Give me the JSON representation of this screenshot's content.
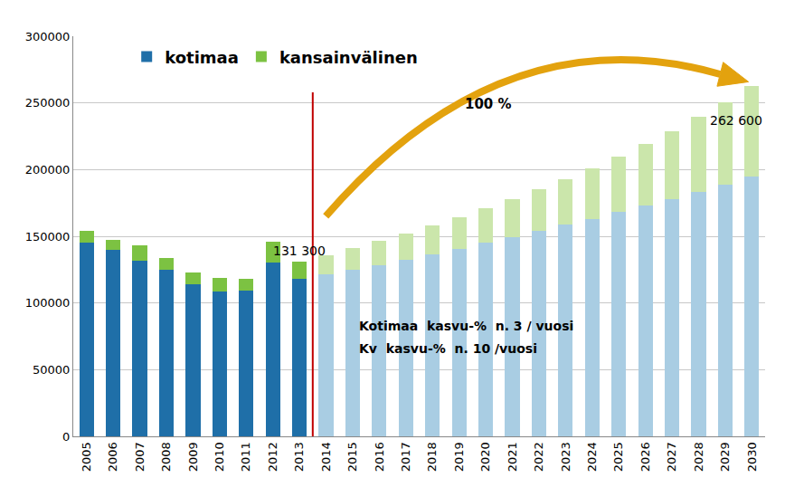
{
  "chart_data": {
    "type": "bar",
    "stacked": true,
    "grid": true,
    "legend": "upper left",
    "categories": [
      "2005",
      "2006",
      "2007",
      "2008",
      "2009",
      "2010",
      "2011",
      "2012",
      "2013",
      "2014",
      "2015",
      "2016",
      "2017",
      "2018",
      "2019",
      "2020",
      "2021",
      "2022",
      "2023",
      "2024",
      "2025",
      "2026",
      "2027",
      "2028",
      "2029",
      "2030"
    ],
    "series": [
      {
        "name": "kotimaa",
        "color": "#1f6fa8",
        "colors": [
          "#1f6fa8",
          "#1f6fa8",
          "#1f6fa8",
          "#1f6fa8",
          "#1f6fa8",
          "#1f6fa8",
          "#1f6fa8",
          "#1f6fa8",
          "#1f6fa8",
          "#a9cde3",
          "#a9cde3",
          "#a9cde3",
          "#a9cde3",
          "#a9cde3",
          "#a9cde3",
          "#a9cde3",
          "#a9cde3",
          "#a9cde3",
          "#a9cde3",
          "#a9cde3",
          "#a9cde3",
          "#a9cde3",
          "#a9cde3",
          "#a9cde3",
          "#a9cde3",
          "#a9cde3"
        ],
        "values": [
          145000,
          139500,
          132000,
          125000,
          114000,
          108500,
          109000,
          130000,
          118000,
          121500,
          125000,
          128500,
          132500,
          136500,
          140500,
          145000,
          149500,
          154000,
          158500,
          163000,
          168000,
          173000,
          178000,
          183500,
          189000,
          195000
        ]
      },
      {
        "name": "kansainvälinen",
        "color": "#7cc242",
        "colors": [
          "#7cc242",
          "#7cc242",
          "#7cc242",
          "#7cc242",
          "#7cc242",
          "#7cc242",
          "#7cc242",
          "#7cc242",
          "#7cc242",
          "#cbe6ab",
          "#cbe6ab",
          "#cbe6ab",
          "#cbe6ab",
          "#cbe6ab",
          "#cbe6ab",
          "#cbe6ab",
          "#cbe6ab",
          "#cbe6ab",
          "#cbe6ab",
          "#cbe6ab",
          "#cbe6ab",
          "#cbe6ab",
          "#cbe6ab",
          "#cbe6ab",
          "#cbe6ab",
          "#cbe6ab"
        ],
        "values": [
          9000,
          7500,
          11000,
          9000,
          9000,
          10500,
          9000,
          16000,
          13300,
          14500,
          16000,
          18000,
          19500,
          21500,
          24000,
          26000,
          28500,
          31500,
          34500,
          38000,
          42000,
          46000,
          51000,
          56000,
          61500,
          67600
        ]
      }
    ],
    "ylim": [
      0,
      300000
    ],
    "yticks": [
      0,
      50000,
      100000,
      150000,
      200000,
      250000,
      300000
    ],
    "annotations": [
      {
        "text": "131 300",
        "category": "2013"
      },
      {
        "text": "262 600",
        "category": "2030"
      },
      {
        "text": "100 %"
      },
      {
        "text": "Kotimaa  kasvu-%  n. 3 / vuosi"
      },
      {
        "text": "Kv  kasvu-%  n. 10 /vuosi"
      }
    ]
  }
}
